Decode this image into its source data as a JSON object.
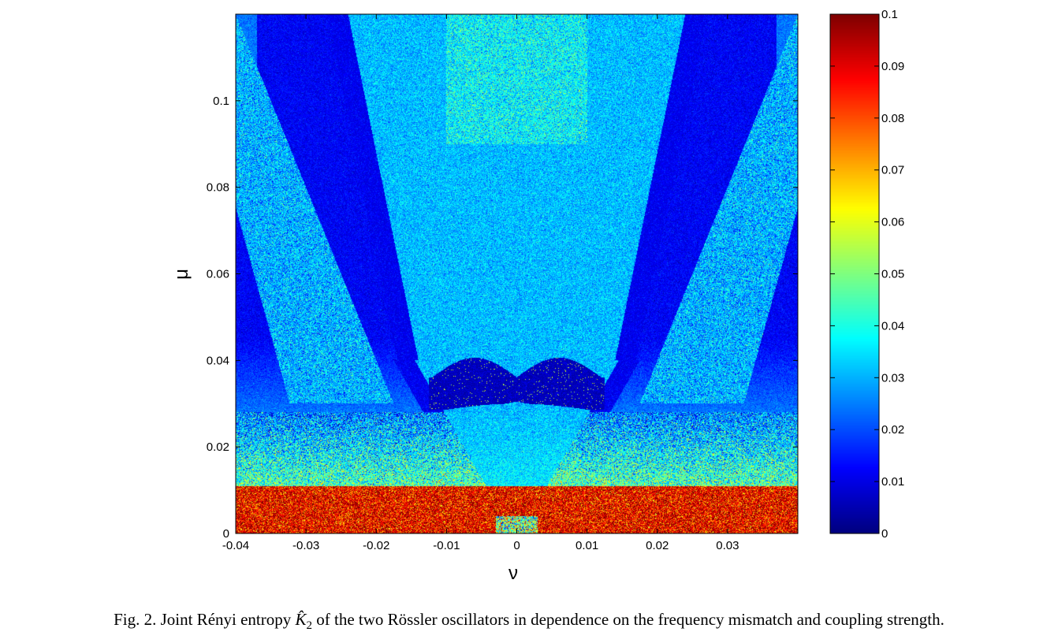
{
  "chart_data": {
    "type": "heatmap",
    "title": "",
    "xlabel": "ν",
    "ylabel": "μ",
    "xlim": [
      -0.04,
      0.04
    ],
    "ylim": [
      0,
      0.12
    ],
    "x_ticks": [
      -0.04,
      -0.03,
      -0.02,
      -0.01,
      0,
      0.01,
      0.02,
      0.03
    ],
    "x_tick_labels": [
      "-0.04",
      "-0.03",
      "-0.02",
      "-0.01",
      "0",
      "0.01",
      "0.02",
      "0.03"
    ],
    "y_ticks": [
      0,
      0.02,
      0.04,
      0.06,
      0.08,
      0.1
    ],
    "y_tick_labels": [
      "0",
      "0.02",
      "0.04",
      "0.06",
      "0.08",
      "0.1"
    ],
    "colorbar": {
      "colormap": "jet",
      "range": [
        0,
        0.1
      ],
      "ticks": [
        0,
        0.01,
        0.02,
        0.03,
        0.04,
        0.05,
        0.06,
        0.07,
        0.08,
        0.09,
        0.1
      ],
      "tick_labels": [
        "0",
        "0.01",
        "0.02",
        "0.03",
        "0.04",
        "0.05",
        "0.06",
        "0.07",
        "0.08",
        "0.09",
        "0.1"
      ]
    },
    "grid": false,
    "regions": [
      {
        "name": "low-coupling band",
        "y_range": [
          0,
          0.012
        ],
        "value": 0.092
      },
      {
        "name": "noisy transition band",
        "y_range": [
          0.012,
          0.028
        ],
        "value": 0.045
      },
      {
        "name": "central wedge",
        "x_extent_at": {
          "0": 0,
          "0.04": 0.014,
          "0.12": 0.024
        },
        "value": 0.032
      },
      {
        "name": "dark crescent",
        "x_range": [
          -0.012,
          0.012
        ],
        "y_range": [
          0.029,
          0.041
        ],
        "value": 0.002
      },
      {
        "name": "outer tongues",
        "value": 0.028
      },
      {
        "name": "background",
        "value": 0.012
      }
    ]
  },
  "caption": {
    "prefix": "Fig. 2. Joint Rényi entropy ",
    "symbol": "K̂",
    "subscript": "2",
    "suffix": " of the two Rössler oscillators in dependence on the frequency mismatch and coupling strength."
  }
}
